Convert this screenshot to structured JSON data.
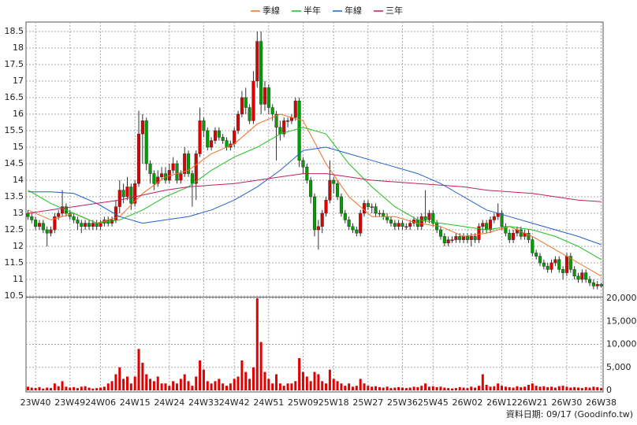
{
  "chart_data": {
    "type": "candlestick",
    "series": [
      {
        "name": "季線",
        "color": "#f07020",
        "x": [
          0,
          6,
          12,
          18,
          24,
          30,
          36,
          42,
          48,
          54,
          60,
          66,
          72,
          78,
          84,
          90,
          96,
          102,
          108,
          114,
          120,
          126,
          132,
          138,
          144,
          150
        ],
        "values": [
          13.1,
          12.8,
          13.0,
          12.7,
          12.9,
          13.6,
          14.1,
          14.3,
          14.8,
          15.1,
          15.7,
          16.0,
          15.8,
          14.5,
          13.5,
          12.9,
          12.9,
          12.7,
          12.6,
          12.3,
          12.4,
          12.6,
          12.3,
          11.9,
          11.5,
          11.1
        ]
      },
      {
        "name": "半年",
        "color": "#20c020",
        "x": [
          0,
          6,
          12,
          18,
          24,
          30,
          36,
          42,
          48,
          54,
          60,
          66,
          72,
          78,
          84,
          90,
          96,
          102,
          108,
          114,
          120,
          126,
          132,
          138,
          144,
          150
        ],
        "values": [
          13.7,
          13.3,
          13.0,
          12.7,
          12.8,
          13.1,
          13.5,
          13.8,
          14.3,
          14.7,
          15.0,
          15.4,
          15.6,
          15.4,
          14.5,
          13.8,
          13.2,
          12.8,
          12.7,
          12.6,
          12.5,
          12.6,
          12.5,
          12.3,
          12.0,
          11.6
        ]
      },
      {
        "name": "年線",
        "color": "#2060d0",
        "x": [
          0,
          6,
          12,
          18,
          24,
          30,
          36,
          42,
          48,
          54,
          60,
          66,
          72,
          78,
          84,
          90,
          96,
          102,
          108,
          114,
          120,
          126,
          132,
          138,
          144,
          150
        ],
        "values": [
          13.65,
          13.65,
          13.6,
          13.3,
          12.9,
          12.7,
          12.8,
          12.9,
          13.1,
          13.4,
          13.8,
          14.3,
          14.9,
          15.0,
          14.8,
          14.6,
          14.4,
          14.2,
          13.9,
          13.5,
          13.1,
          12.9,
          12.7,
          12.5,
          12.3,
          12.05
        ]
      },
      {
        "name": "三年",
        "color": "#c02060",
        "x": [
          0,
          6,
          12,
          18,
          24,
          30,
          36,
          42,
          48,
          54,
          60,
          66,
          72,
          78,
          84,
          90,
          96,
          102,
          108,
          114,
          120,
          126,
          132,
          138,
          144,
          150
        ],
        "values": [
          13.0,
          13.1,
          13.2,
          13.3,
          13.4,
          13.55,
          13.7,
          13.8,
          13.85,
          13.9,
          14.0,
          14.1,
          14.2,
          14.2,
          14.1,
          14.0,
          13.95,
          13.9,
          13.85,
          13.8,
          13.7,
          13.65,
          13.6,
          13.5,
          13.4,
          13.35
        ]
      }
    ],
    "open": [
      13.0,
      12.9,
      12.8,
      12.6,
      12.7,
      12.5,
      12.4,
      12.5,
      12.9,
      13.0,
      13.2,
      13.0,
      12.9,
      12.8,
      12.7,
      12.6,
      12.7,
      12.6,
      12.7,
      12.6,
      12.7,
      12.8,
      12.7,
      12.8,
      13.2,
      13.7,
      13.5,
      13.8,
      13.3,
      13.9,
      15.4,
      15.8,
      14.5,
      14.2,
      13.9,
      14.1,
      14.2,
      14.0,
      14.3,
      14.5,
      14.0,
      14.2,
      14.8,
      14.2,
      13.9,
      14.8,
      15.8,
      15.5,
      15.0,
      15.2,
      15.5,
      15.3,
      15.2,
      15.0,
      15.1,
      15.5,
      16.0,
      16.5,
      16.2,
      15.8,
      17.0,
      18.2,
      16.3,
      16.8,
      16.2,
      16.0,
      15.6,
      15.4,
      15.8,
      15.8,
      15.9,
      16.4,
      14.6,
      14.4,
      14.0,
      13.5,
      12.5,
      12.6,
      13.0,
      13.4,
      14.0,
      13.9,
      13.5,
      13.0,
      12.8,
      12.6,
      12.5,
      12.4,
      13.0,
      13.3,
      13.2,
      13.2,
      13.0,
      13.0,
      12.9,
      12.8,
      12.7,
      12.6,
      12.7,
      12.6,
      12.6,
      12.7,
      12.8,
      12.6,
      12.9,
      12.8,
      13.0,
      12.7,
      12.5,
      12.3,
      12.1,
      12.2,
      12.2,
      12.3,
      12.2,
      12.3,
      12.2,
      12.3,
      12.2,
      12.6,
      12.7,
      12.5,
      12.8,
      12.9,
      13.0,
      12.6,
      12.4,
      12.2,
      12.4,
      12.5,
      12.3,
      12.4,
      12.2,
      11.8,
      11.7,
      11.5,
      11.4,
      11.3,
      11.5,
      11.6,
      11.3,
      11.2,
      11.7,
      11.3,
      11.1,
      11.0,
      11.2,
      11.0,
      10.9,
      10.8,
      10.85
    ],
    "high": [
      13.1,
      13.0,
      12.9,
      12.8,
      12.8,
      12.6,
      12.6,
      13.0,
      13.1,
      13.7,
      13.3,
      13.1,
      13.0,
      12.9,
      12.8,
      12.8,
      12.8,
      12.8,
      12.8,
      12.8,
      12.9,
      12.9,
      12.9,
      13.4,
      14.0,
      13.9,
      14.1,
      13.9,
      14.0,
      16.1,
      16.0,
      15.9,
      14.6,
      14.3,
      14.3,
      14.4,
      14.4,
      14.5,
      14.7,
      14.6,
      14.3,
      15.0,
      14.9,
      14.3,
      14.9,
      16.2,
      15.9,
      15.6,
      15.3,
      15.6,
      15.6,
      15.4,
      15.3,
      15.2,
      15.6,
      16.1,
      16.7,
      16.8,
      16.3,
      17.3,
      18.5,
      18.5,
      17.0,
      16.9,
      16.3,
      16.1,
      15.8,
      15.9,
      15.9,
      16.0,
      16.5,
      16.5,
      14.7,
      14.5,
      14.1,
      13.6,
      12.8,
      13.1,
      13.5,
      14.6,
      14.1,
      14.0,
      13.6,
      13.1,
      12.9,
      12.7,
      12.6,
      13.1,
      13.4,
      13.4,
      13.3,
      13.3,
      13.1,
      13.1,
      13.0,
      12.9,
      12.8,
      12.8,
      12.8,
      12.7,
      12.8,
      12.9,
      12.9,
      13.0,
      13.7,
      13.1,
      13.1,
      12.8,
      12.6,
      12.4,
      12.3,
      12.3,
      12.4,
      12.4,
      12.4,
      12.4,
      12.4,
      12.4,
      12.7,
      12.8,
      12.8,
      12.9,
      13.0,
      13.3,
      13.1,
      12.7,
      12.5,
      12.5,
      12.6,
      12.6,
      12.5,
      12.5,
      12.3,
      11.9,
      11.8,
      11.6,
      11.5,
      11.6,
      11.7,
      11.7,
      11.4,
      11.8,
      11.8,
      11.4,
      11.2,
      11.3,
      11.3,
      11.1,
      11.0,
      10.95,
      10.9
    ],
    "low": [
      12.8,
      12.7,
      12.5,
      12.5,
      12.4,
      12.0,
      12.3,
      12.4,
      12.8,
      12.9,
      12.9,
      12.8,
      12.7,
      12.5,
      12.4,
      12.5,
      12.5,
      12.5,
      12.5,
      12.5,
      12.6,
      12.6,
      12.6,
      12.7,
      13.0,
      13.3,
      13.4,
      13.1,
      13.2,
      13.8,
      14.5,
      14.3,
      13.9,
      13.7,
      13.8,
      14.0,
      13.9,
      13.9,
      14.2,
      13.9,
      13.9,
      14.1,
      14.1,
      13.2,
      13.4,
      14.7,
      15.3,
      14.9,
      14.9,
      15.1,
      15.2,
      15.1,
      14.9,
      14.9,
      15.0,
      15.4,
      15.9,
      16.0,
      15.7,
      15.7,
      16.8,
      16.0,
      16.1,
      16.0,
      15.8,
      14.6,
      15.2,
      15.3,
      15.6,
      15.7,
      15.8,
      14.4,
      14.2,
      13.9,
      13.3,
      12.3,
      11.9,
      12.4,
      12.9,
      13.3,
      13.6,
      13.4,
      12.9,
      12.7,
      12.5,
      12.4,
      12.3,
      12.3,
      12.9,
      13.1,
      13.0,
      12.9,
      12.9,
      12.8,
      12.7,
      12.6,
      12.5,
      12.5,
      12.5,
      12.5,
      12.5,
      12.6,
      12.5,
      12.5,
      12.7,
      12.7,
      12.6,
      12.4,
      12.2,
      12.0,
      12.0,
      12.1,
      12.1,
      12.1,
      12.1,
      12.1,
      12.0,
      12.1,
      12.1,
      12.4,
      12.4,
      12.4,
      12.7,
      12.8,
      12.5,
      12.3,
      12.1,
      12.1,
      12.3,
      12.2,
      12.2,
      12.1,
      11.7,
      11.6,
      11.4,
      11.3,
      11.2,
      11.2,
      11.4,
      11.2,
      11.0,
      11.1,
      11.2,
      11.0,
      10.9,
      10.9,
      10.9,
      10.8,
      10.7,
      10.7,
      10.75
    ],
    "close": [
      12.9,
      12.8,
      12.6,
      12.7,
      12.5,
      12.4,
      12.5,
      12.9,
      13.0,
      13.2,
      13.0,
      12.9,
      12.8,
      12.7,
      12.6,
      12.7,
      12.6,
      12.7,
      12.6,
      12.7,
      12.8,
      12.7,
      12.8,
      13.2,
      13.7,
      13.5,
      13.8,
      13.3,
      13.9,
      15.4,
      15.8,
      14.5,
      14.2,
      13.9,
      14.1,
      14.2,
      14.0,
      14.3,
      14.5,
      14.0,
      14.2,
      14.8,
      14.2,
      13.9,
      14.8,
      15.8,
      15.5,
      15.0,
      15.2,
      15.5,
      15.3,
      15.2,
      15.0,
      15.1,
      15.5,
      16.0,
      16.5,
      16.2,
      15.8,
      17.0,
      18.2,
      16.3,
      16.8,
      16.2,
      16.0,
      15.6,
      15.4,
      15.8,
      15.8,
      15.9,
      16.4,
      14.6,
      14.4,
      14.0,
      13.5,
      12.5,
      12.6,
      13.0,
      13.4,
      14.0,
      13.9,
      13.5,
      13.0,
      12.8,
      12.6,
      12.5,
      12.4,
      13.0,
      13.3,
      13.2,
      13.2,
      13.0,
      13.0,
      12.9,
      12.8,
      12.7,
      12.6,
      12.7,
      12.6,
      12.6,
      12.7,
      12.8,
      12.6,
      12.9,
      12.8,
      13.0,
      12.7,
      12.5,
      12.3,
      12.1,
      12.2,
      12.2,
      12.3,
      12.2,
      12.3,
      12.2,
      12.3,
      12.2,
      12.6,
      12.7,
      12.5,
      12.8,
      12.9,
      13.0,
      12.6,
      12.4,
      12.2,
      12.4,
      12.5,
      12.3,
      12.4,
      12.2,
      11.8,
      11.7,
      11.5,
      11.4,
      11.3,
      11.5,
      11.6,
      11.3,
      11.2,
      11.7,
      11.3,
      11.1,
      11.0,
      11.2,
      11.0,
      10.9,
      10.8,
      10.85,
      10.8
    ],
    "volume": [
      800,
      600,
      500,
      700,
      400,
      600,
      500,
      1500,
      900,
      2000,
      800,
      600,
      700,
      500,
      800,
      900,
      600,
      400,
      500,
      600,
      800,
      1500,
      2000,
      3500,
      5000,
      2500,
      3000,
      1500,
      3000,
      9000,
      6000,
      3500,
      2500,
      2000,
      3000,
      1500,
      1500,
      1000,
      2000,
      1500,
      2500,
      3500,
      2000,
      1000,
      3000,
      6500,
      4500,
      2000,
      1500,
      2000,
      2500,
      1500,
      1000,
      1500,
      2500,
      3000,
      6500,
      4000,
      2500,
      5000,
      20000,
      10500,
      4000,
      2500,
      1500,
      3500,
      1500,
      1000,
      1500,
      1500,
      2000,
      7000,
      4000,
      3000,
      2000,
      4000,
      3500,
      2000,
      1500,
      4500,
      2500,
      2000,
      1500,
      1000,
      1500,
      800,
      1000,
      2500,
      1500,
      1000,
      800,
      900,
      700,
      600,
      800,
      500,
      600,
      700,
      600,
      500,
      600,
      800,
      700,
      1000,
      1500,
      800,
      900,
      700,
      800,
      600,
      500,
      400,
      500,
      700,
      600,
      500,
      800,
      600,
      1000,
      3500,
      1200,
      800,
      900,
      1500,
      1000,
      800,
      700,
      600,
      900,
      700,
      800,
      1200,
      1500,
      1000,
      800,
      900,
      700,
      800,
      600,
      900,
      1000,
      800,
      600,
      700,
      600,
      500,
      700,
      600,
      800,
      700,
      500
    ],
    "ylim": [
      10.5,
      18.5
    ],
    "yticks": [
      10.5,
      11,
      11.5,
      12,
      12.5,
      13,
      13.5,
      14,
      14.5,
      15,
      15.5,
      16,
      16.5,
      17,
      17.5,
      18,
      18.5
    ],
    "y2lim": [
      0,
      20000
    ],
    "y2ticks": [
      0,
      {
        "value": 5000,
        "label": "5,000"
      },
      {
        "value": 10000,
        "label": "10,000"
      },
      {
        "value": 15000,
        "label": "15,000"
      },
      {
        "value": 20000,
        "label": "20,000"
      }
    ],
    "xticks": [
      {
        "value": 2,
        "label": "23W40"
      },
      {
        "value": 11,
        "label": "23W49"
      },
      {
        "value": 19,
        "label": "24W06"
      },
      {
        "value": 28,
        "label": "24W15"
      },
      {
        "value": 37,
        "label": "24W24"
      },
      {
        "value": 46,
        "label": "24W33"
      },
      {
        "value": 54,
        "label": "24W42"
      },
      {
        "value": 63,
        "label": "24W51"
      },
      {
        "value": 72,
        "label": "25W09"
      },
      {
        "value": 80,
        "label": "25W18"
      },
      {
        "value": 89,
        "label": "25W27"
      },
      {
        "value": 98,
        "label": "25W36"
      },
      {
        "value": 106,
        "label": "25W45"
      },
      {
        "value": 115,
        "label": "26W02"
      },
      {
        "value": 124,
        "label": "26W12"
      },
      {
        "value": 132,
        "label": "26W21"
      },
      {
        "value": 141,
        "label": "26W30"
      },
      {
        "value": 150,
        "label": "26W38"
      }
    ],
    "grid": true,
    "up_color": "#e00000",
    "down_color": "#00a000",
    "volume_color": "#e00000",
    "source": "資料日期: 09/17 (Goodinfo.tw)"
  }
}
